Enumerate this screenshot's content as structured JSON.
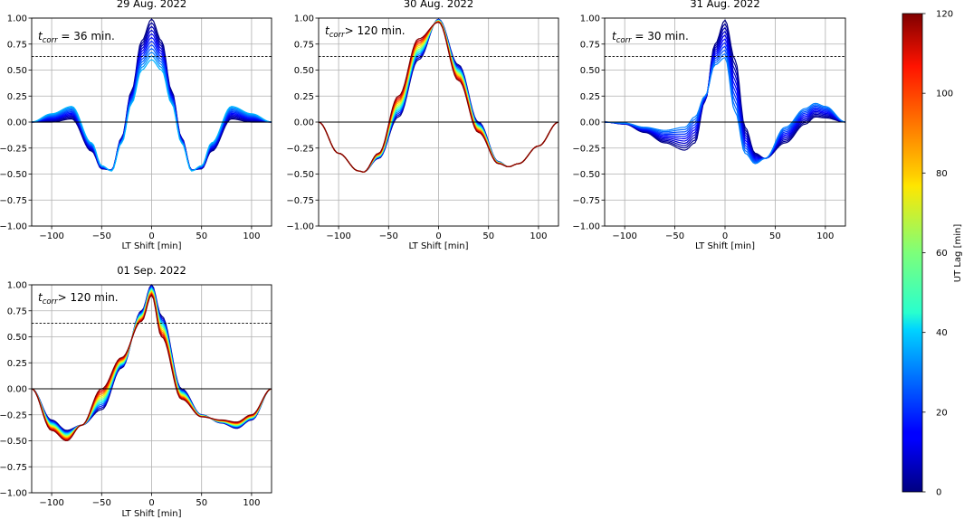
{
  "figure": {
    "colorbar": {
      "label": "UT Lag [min]",
      "range": [
        0,
        120
      ],
      "ticks": [
        0,
        20,
        40,
        60,
        80,
        100,
        120
      ],
      "colormap": "jet"
    }
  },
  "chart_data": [
    {
      "type": "line",
      "title": "29 Aug. 2022",
      "xlabel": "LT Shift [min]",
      "ylabel": "",
      "xlim": [
        -120,
        120
      ],
      "ylim": [
        -1.0,
        1.0
      ],
      "xticks": [
        -100,
        -50,
        0,
        50,
        100
      ],
      "yticks": [
        -1.0,
        -0.75,
        -0.5,
        -0.25,
        0.0,
        0.25,
        0.5,
        0.75,
        1.0
      ],
      "grid": true,
      "annotation": {
        "prefix": "t",
        "subscript": "corr",
        "text": " =  36 min."
      },
      "threshold_line": 0.63,
      "ut_lag_range": [
        0,
        36
      ],
      "n_curves": 12,
      "curve_first": {
        "x": [
          -120,
          -100,
          -80,
          -60,
          -50,
          -40,
          -30,
          -20,
          -10,
          0,
          10,
          20,
          30,
          40,
          50,
          60,
          80,
          100,
          120
        ],
        "y": [
          0.0,
          0.0,
          0.03,
          -0.28,
          -0.45,
          -0.46,
          -0.15,
          0.3,
          0.78,
          0.99,
          0.78,
          0.3,
          -0.15,
          -0.46,
          -0.45,
          -0.28,
          0.03,
          0.0,
          0.0
        ]
      },
      "curve_last": {
        "x": [
          -120,
          -100,
          -80,
          -60,
          -50,
          -40,
          -30,
          -20,
          -10,
          0,
          10,
          20,
          30,
          40,
          50,
          60,
          80,
          100,
          120
        ],
        "y": [
          0.0,
          0.08,
          0.15,
          -0.2,
          -0.42,
          -0.47,
          -0.2,
          0.18,
          0.5,
          0.6,
          0.5,
          0.18,
          -0.2,
          -0.47,
          -0.42,
          -0.2,
          0.15,
          0.08,
          0.0
        ]
      }
    },
    {
      "type": "line",
      "title": "30 Aug. 2022",
      "xlabel": "LT Shift [min]",
      "ylabel": "",
      "xlim": [
        -120,
        120
      ],
      "ylim": [
        -1.0,
        1.0
      ],
      "xticks": [
        -100,
        -50,
        0,
        50,
        100
      ],
      "yticks": [
        -1.0,
        -0.75,
        -0.5,
        -0.25,
        0.0,
        0.25,
        0.5,
        0.75,
        1.0
      ],
      "grid": true,
      "annotation": {
        "prefix": "t",
        "subscript": "corr",
        "text": "> 120 min."
      },
      "threshold_line": 0.63,
      "ut_lag_range": [
        0,
        120
      ],
      "n_curves": 13,
      "curve_first": {
        "x": [
          -120,
          -100,
          -80,
          -75,
          -60,
          -40,
          -20,
          0,
          20,
          40,
          60,
          70,
          80,
          100,
          120
        ],
        "y": [
          0.0,
          -0.3,
          -0.47,
          -0.48,
          -0.35,
          0.05,
          0.6,
          0.99,
          0.55,
          0.0,
          -0.38,
          -0.43,
          -0.4,
          -0.23,
          0.0
        ]
      },
      "curve_last": {
        "x": [
          -120,
          -100,
          -80,
          -75,
          -60,
          -40,
          -20,
          0,
          20,
          40,
          60,
          70,
          80,
          100,
          120
        ],
        "y": [
          0.0,
          -0.3,
          -0.47,
          -0.48,
          -0.3,
          0.25,
          0.8,
          0.96,
          0.4,
          -0.1,
          -0.4,
          -0.43,
          -0.4,
          -0.23,
          0.0
        ]
      }
    },
    {
      "type": "line",
      "title": "31 Aug. 2022",
      "xlabel": "LT Shift [min]",
      "ylabel": "",
      "xlim": [
        -120,
        120
      ],
      "ylim": [
        -1.0,
        1.0
      ],
      "xticks": [
        -100,
        -50,
        0,
        50,
        100
      ],
      "yticks": [
        -1.0,
        -0.75,
        -0.5,
        -0.25,
        0.0,
        0.25,
        0.5,
        0.75,
        1.0
      ],
      "grid": true,
      "annotation": {
        "prefix": "t",
        "subscript": "corr",
        "text": " =  30 min."
      },
      "threshold_line": 0.63,
      "ut_lag_range": [
        0,
        30
      ],
      "n_curves": 11,
      "curve_first": {
        "x": [
          -120,
          -100,
          -80,
          -60,
          -40,
          -30,
          -20,
          -10,
          0,
          10,
          20,
          30,
          40,
          60,
          80,
          90,
          100,
          120
        ],
        "y": [
          0.0,
          -0.02,
          -0.1,
          -0.2,
          -0.27,
          -0.2,
          0.2,
          0.75,
          0.98,
          0.6,
          -0.05,
          -0.3,
          -0.35,
          -0.2,
          -0.02,
          0.05,
          0.04,
          0.0
        ]
      },
      "curve_last": {
        "x": [
          -120,
          -100,
          -80,
          -60,
          -40,
          -30,
          -20,
          -10,
          0,
          10,
          20,
          30,
          40,
          60,
          80,
          90,
          100,
          120
        ],
        "y": [
          0.0,
          -0.01,
          -0.05,
          -0.08,
          -0.05,
          0.05,
          0.25,
          0.55,
          0.62,
          0.1,
          -0.3,
          -0.4,
          -0.35,
          -0.05,
          0.13,
          0.18,
          0.15,
          0.0
        ]
      }
    },
    {
      "type": "line",
      "title": "01 Sep. 2022",
      "xlabel": "LT Shift [min]",
      "ylabel": "",
      "xlim": [
        -120,
        120
      ],
      "ylim": [
        -1.0,
        1.0
      ],
      "xticks": [
        -100,
        -50,
        0,
        50,
        100
      ],
      "yticks": [
        -1.0,
        -0.75,
        -0.5,
        -0.25,
        0.0,
        0.25,
        0.5,
        0.75,
        1.0
      ],
      "grid": true,
      "annotation": {
        "prefix": "t",
        "subscript": "corr",
        "text": "> 120 min."
      },
      "threshold_line": 0.63,
      "ut_lag_range": [
        0,
        120
      ],
      "n_curves": 13,
      "curve_first": {
        "x": [
          -120,
          -100,
          -85,
          -70,
          -50,
          -30,
          -10,
          0,
          10,
          30,
          50,
          70,
          85,
          100,
          120
        ],
        "y": [
          0.0,
          -0.3,
          -0.4,
          -0.35,
          -0.2,
          0.2,
          0.75,
          1.0,
          0.7,
          0.0,
          -0.25,
          -0.33,
          -0.38,
          -0.3,
          0.0
        ]
      },
      "curve_last": {
        "x": [
          -120,
          -100,
          -85,
          -70,
          -50,
          -30,
          -10,
          0,
          10,
          30,
          50,
          70,
          85,
          100,
          120
        ],
        "y": [
          0.0,
          -0.4,
          -0.5,
          -0.35,
          0.0,
          0.3,
          0.65,
          0.9,
          0.5,
          -0.1,
          -0.27,
          -0.3,
          -0.32,
          -0.25,
          0.0
        ]
      }
    }
  ]
}
